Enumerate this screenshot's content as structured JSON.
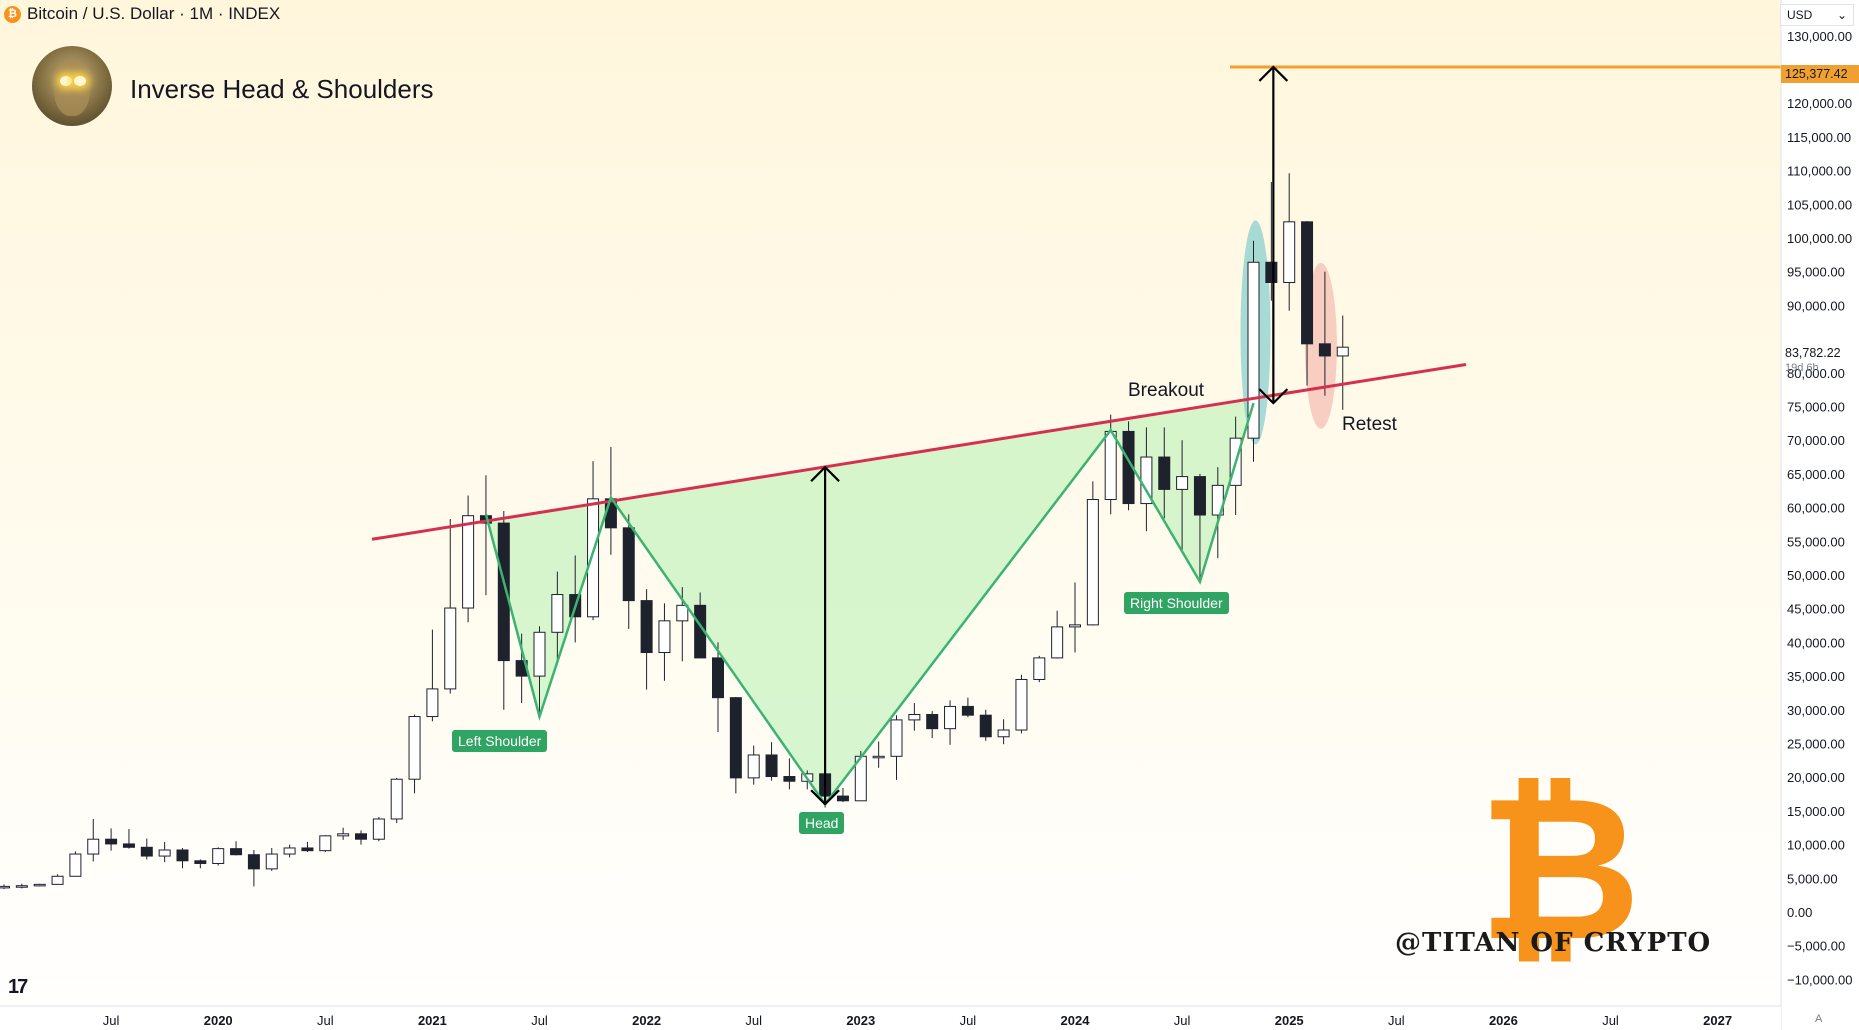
{
  "header": {
    "symbol": "Bitcoin / U.S. Dollar · 1M · INDEX",
    "symbol_icon": "bitcoin-icon",
    "currency": "USD"
  },
  "title": "Inverse Head & Shoulders",
  "labels": {
    "left_shoulder": "Left Shoulder",
    "head": "Head",
    "right_shoulder": "Right Shoulder",
    "breakout": "Breakout",
    "retest": "Retest"
  },
  "watermark": "@TITAN OF CRYPTO",
  "logo_glyph": "₿",
  "tv_logo": "17",
  "auto_label": "A",
  "price_tags": {
    "target": "125,377.42",
    "last": "83,782.22",
    "countdown": "19d 6h"
  },
  "colors": {
    "up_body": "#ffffff",
    "down_body": "#1e222d",
    "neckline": "#d6304f",
    "pattern_line": "#3cb371",
    "pattern_fill": "#b7f0b0",
    "target_line": "#f0a030",
    "breakout_ellipse": "#6ec6c9",
    "retest_ellipse": "#f4b0a8",
    "badge": "#2fa463"
  },
  "chart_data": {
    "type": "candlestick",
    "title": "Inverse Head & Shoulders",
    "x_axis": {
      "labels": [
        "Jul",
        "2020",
        "Jul",
        "2021",
        "Jul",
        "2022",
        "Jul",
        "2023",
        "Jul",
        "2024",
        "Jul",
        "2025",
        "Jul",
        "2026",
        "Jul",
        "2027"
      ],
      "start_month": "2019-01"
    },
    "y_axis": {
      "min": -10000,
      "max": 130000,
      "step": 5000,
      "labels": [
        "130,000.00",
        "125,000.00",
        "120,000.00",
        "115,000.00",
        "110,000.00",
        "105,000.00",
        "100,000.00",
        "95,000.00",
        "90,000.00",
        "85,000.00",
        "80,000.00",
        "75,000.00",
        "70,000.00",
        "65,000.00",
        "60,000.00",
        "55,000.00",
        "50,000.00",
        "45,000.00",
        "40,000.00",
        "35,000.00",
        "30,000.00",
        "25,000.00",
        "20,000.00",
        "15,000.00",
        "10,000.00",
        "5,000.00",
        "0.00",
        "−5,000.00",
        "−10,000.00"
      ]
    },
    "candles": [
      [
        3700,
        4100,
        3400,
        3800
      ],
      [
        3800,
        4200,
        3500,
        3900
      ],
      [
        3900,
        4200,
        3800,
        4100
      ],
      [
        4100,
        5600,
        4100,
        5300
      ],
      [
        5300,
        9000,
        5300,
        8600
      ],
      [
        8600,
        13800,
        7500,
        10800
      ],
      [
        10800,
        12400,
        9100,
        10100
      ],
      [
        10100,
        12300,
        9400,
        9600
      ],
      [
        9600,
        10900,
        7800,
        8300
      ],
      [
        8300,
        10400,
        7400,
        9200
      ],
      [
        9200,
        9500,
        6500,
        7600
      ],
      [
        7600,
        7800,
        6500,
        7200
      ],
      [
        7200,
        9600,
        6900,
        9400
      ],
      [
        9400,
        10500,
        8400,
        8500
      ],
      [
        8500,
        9200,
        3800,
        6400
      ],
      [
        6400,
        9500,
        6100,
        8600
      ],
      [
        8600,
        10000,
        8100,
        9500
      ],
      [
        9500,
        10400,
        8900,
        9100
      ],
      [
        9100,
        11400,
        8900,
        11300
      ],
      [
        11300,
        12500,
        10700,
        11600
      ],
      [
        11600,
        12100,
        10000,
        10800
      ],
      [
        10800,
        14100,
        10500,
        13800
      ],
      [
        13800,
        19900,
        13200,
        19700
      ],
      [
        19700,
        29300,
        17600,
        29000
      ],
      [
        29000,
        41900,
        28300,
        33100
      ],
      [
        33100,
        58300,
        32400,
        45100
      ],
      [
        45100,
        61800,
        43000,
        58800
      ],
      [
        58800,
        64800,
        47000,
        57700
      ],
      [
        57700,
        59500,
        30000,
        37300
      ],
      [
        37300,
        41300,
        31000,
        35000
      ],
      [
        35000,
        42400,
        29300,
        41500
      ],
      [
        41500,
        50500,
        37400,
        47100
      ],
      [
        47100,
        52900,
        40000,
        43800
      ],
      [
        43800,
        66900,
        43300,
        61300
      ],
      [
        61300,
        69000,
        53000,
        57000
      ],
      [
        57000,
        59000,
        42000,
        46200
      ],
      [
        46200,
        47900,
        33000,
        38500
      ],
      [
        38500,
        45800,
        34300,
        43200
      ],
      [
        43200,
        48200,
        37200,
        45500
      ],
      [
        45500,
        47400,
        37700,
        37700
      ],
      [
        37700,
        40000,
        26700,
        31800
      ],
      [
        31800,
        31900,
        17600,
        19900
      ],
      [
        19900,
        24700,
        18900,
        23300
      ],
      [
        23300,
        25200,
        19500,
        20100
      ],
      [
        20100,
        22800,
        18200,
        19400
      ],
      [
        19400,
        21000,
        18200,
        20500
      ],
      [
        20500,
        21500,
        15500,
        17200
      ],
      [
        17200,
        18400,
        16300,
        16500
      ],
      [
        16500,
        23900,
        16500,
        23100
      ],
      [
        23100,
        25300,
        21400,
        23100
      ],
      [
        23100,
        29200,
        19600,
        28500
      ],
      [
        28500,
        31000,
        26900,
        29300
      ],
      [
        29300,
        29800,
        25800,
        27200
      ],
      [
        27200,
        31400,
        24800,
        30500
      ],
      [
        30500,
        31800,
        28900,
        29200
      ],
      [
        29200,
        30000,
        25400,
        26000
      ],
      [
        26000,
        28600,
        24900,
        27000
      ],
      [
        27000,
        35200,
        26500,
        34500
      ],
      [
        34500,
        38000,
        34100,
        37700
      ],
      [
        37700,
        44700,
        37600,
        42300
      ],
      [
        42300,
        48900,
        38500,
        42600
      ],
      [
        42600,
        63900,
        42500,
        61200
      ],
      [
        61200,
        73800,
        59000,
        71300
      ],
      [
        71300,
        72800,
        59600,
        60600
      ],
      [
        60600,
        71900,
        56500,
        67500
      ],
      [
        67500,
        71900,
        58400,
        62700
      ],
      [
        62700,
        70000,
        53500,
        64600
      ],
      [
        64600,
        65000,
        49000,
        58900
      ],
      [
        58900,
        66000,
        52500,
        63300
      ],
      [
        63300,
        73500,
        58900,
        70300
      ],
      [
        70300,
        99600,
        66800,
        96400
      ],
      [
        96400,
        108300,
        90700,
        93400
      ],
      [
        93400,
        109600,
        89200,
        102400
      ],
      [
        102400,
        102500,
        78100,
        84300
      ],
      [
        84300,
        95000,
        76600,
        82500
      ],
      [
        82500,
        88500,
        74500,
        83800
      ]
    ],
    "neckline": [
      [
        "2021-04",
        58000
      ],
      [
        "2025-08",
        80000
      ]
    ],
    "target_level": 125377.42,
    "last_price": 83782.22,
    "pattern_points": [
      {
        "month": "2021-04",
        "price": 59000
      },
      {
        "month": "2021-07",
        "price": 29000,
        "label": "Left Shoulder"
      },
      {
        "month": "2021-11",
        "price": 61500
      },
      {
        "month": "2022-11",
        "price": 16000,
        "label": "Head"
      },
      {
        "month": "2024-03",
        "price": 71500
      },
      {
        "month": "2024-08",
        "price": 49000,
        "label": "Right Shoulder"
      },
      {
        "month": "2024-11",
        "price": 75500
      }
    ],
    "measured_moves": [
      {
        "month": "2022-11",
        "from": 16000,
        "to": 66000
      },
      {
        "month": "2024-12",
        "from": 75500,
        "to": 125377.42
      }
    ]
  }
}
